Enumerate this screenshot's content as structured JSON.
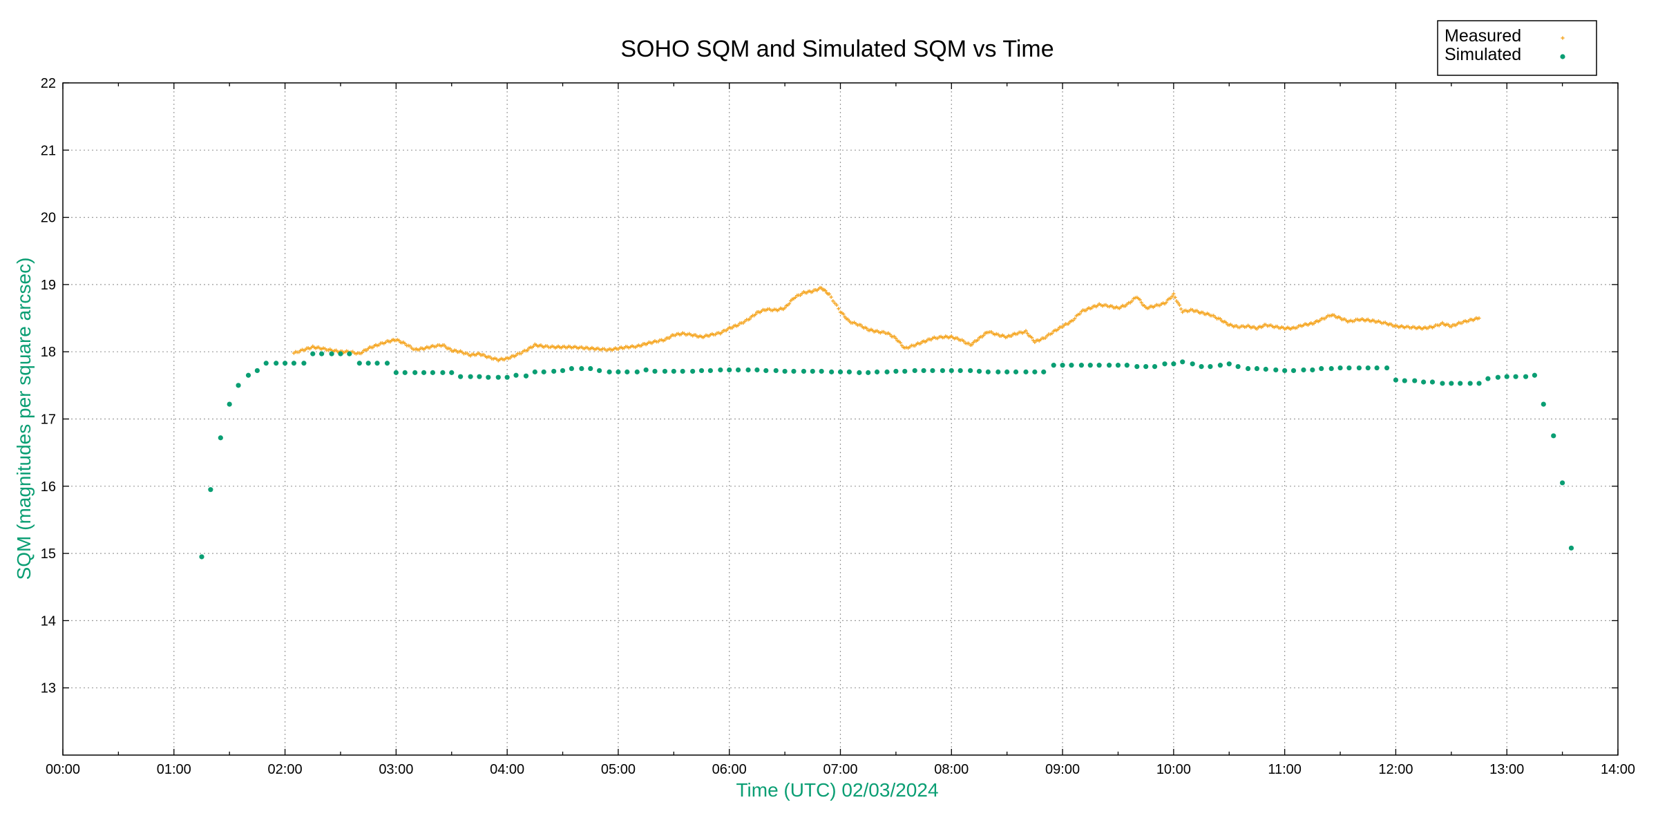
{
  "chart_data": {
    "type": "scatter",
    "title": "SOHO SQM and Simulated SQM vs Time",
    "xlabel": "Time (UTC)    02/03/2024",
    "ylabel": "SQM (magnitudes per square arcsec)",
    "x_unit": "hours UTC",
    "xlim": [
      0,
      14
    ],
    "ylim": [
      12,
      22
    ],
    "x_ticks": [
      "00:00",
      "01:00",
      "02:00",
      "03:00",
      "04:00",
      "05:00",
      "06:00",
      "07:00",
      "08:00",
      "09:00",
      "10:00",
      "11:00",
      "12:00",
      "13:00",
      "14:00"
    ],
    "y_ticks": [
      "13",
      "14",
      "15",
      "16",
      "17",
      "18",
      "19",
      "20",
      "21",
      "22"
    ],
    "grid": true,
    "legend_position": "top-right",
    "series": [
      {
        "name": "Measured",
        "color": "#f5a623",
        "marker": "plus",
        "points": [
          [
            2.08,
            17.98
          ],
          [
            2.17,
            18.03
          ],
          [
            2.25,
            18.07
          ],
          [
            2.33,
            18.05
          ],
          [
            2.42,
            18.02
          ],
          [
            2.5,
            18.0
          ],
          [
            2.58,
            18.0
          ],
          [
            2.67,
            17.97
          ],
          [
            2.75,
            18.05
          ],
          [
            2.83,
            18.1
          ],
          [
            2.92,
            18.15
          ],
          [
            3.0,
            18.18
          ],
          [
            3.08,
            18.12
          ],
          [
            3.17,
            18.03
          ],
          [
            3.25,
            18.05
          ],
          [
            3.33,
            18.08
          ],
          [
            3.42,
            18.1
          ],
          [
            3.5,
            18.02
          ],
          [
            3.58,
            18.0
          ],
          [
            3.67,
            17.95
          ],
          [
            3.75,
            17.97
          ],
          [
            3.83,
            17.92
          ],
          [
            3.92,
            17.88
          ],
          [
            4.0,
            17.9
          ],
          [
            4.08,
            17.95
          ],
          [
            4.17,
            18.02
          ],
          [
            4.25,
            18.1
          ],
          [
            4.33,
            18.08
          ],
          [
            4.42,
            18.07
          ],
          [
            4.5,
            18.07
          ],
          [
            4.58,
            18.07
          ],
          [
            4.67,
            18.06
          ],
          [
            4.75,
            18.05
          ],
          [
            4.83,
            18.04
          ],
          [
            4.92,
            18.03
          ],
          [
            5.0,
            18.05
          ],
          [
            5.08,
            18.07
          ],
          [
            5.17,
            18.08
          ],
          [
            5.25,
            18.12
          ],
          [
            5.33,
            18.15
          ],
          [
            5.42,
            18.18
          ],
          [
            5.5,
            18.25
          ],
          [
            5.58,
            18.27
          ],
          [
            5.67,
            18.25
          ],
          [
            5.75,
            18.22
          ],
          [
            5.83,
            18.25
          ],
          [
            5.92,
            18.28
          ],
          [
            6.0,
            18.35
          ],
          [
            6.08,
            18.4
          ],
          [
            6.17,
            18.48
          ],
          [
            6.25,
            18.58
          ],
          [
            6.33,
            18.63
          ],
          [
            6.42,
            18.62
          ],
          [
            6.5,
            18.65
          ],
          [
            6.58,
            18.8
          ],
          [
            6.67,
            18.88
          ],
          [
            6.75,
            18.9
          ],
          [
            6.83,
            18.95
          ],
          [
            6.9,
            18.85
          ],
          [
            7.0,
            18.6
          ],
          [
            7.08,
            18.45
          ],
          [
            7.17,
            18.4
          ],
          [
            7.25,
            18.33
          ],
          [
            7.33,
            18.3
          ],
          [
            7.42,
            18.28
          ],
          [
            7.5,
            18.2
          ],
          [
            7.58,
            18.05
          ],
          [
            7.67,
            18.1
          ],
          [
            7.75,
            18.15
          ],
          [
            7.83,
            18.2
          ],
          [
            7.92,
            18.22
          ],
          [
            8.0,
            18.22
          ],
          [
            8.08,
            18.18
          ],
          [
            8.17,
            18.1
          ],
          [
            8.25,
            18.2
          ],
          [
            8.33,
            18.3
          ],
          [
            8.42,
            18.25
          ],
          [
            8.5,
            18.22
          ],
          [
            8.58,
            18.27
          ],
          [
            8.67,
            18.3
          ],
          [
            8.75,
            18.15
          ],
          [
            8.83,
            18.2
          ],
          [
            8.92,
            18.3
          ],
          [
            9.0,
            18.38
          ],
          [
            9.08,
            18.45
          ],
          [
            9.17,
            18.6
          ],
          [
            9.25,
            18.65
          ],
          [
            9.33,
            18.7
          ],
          [
            9.42,
            18.68
          ],
          [
            9.5,
            18.65
          ],
          [
            9.58,
            18.7
          ],
          [
            9.67,
            18.82
          ],
          [
            9.75,
            18.65
          ],
          [
            9.83,
            18.68
          ],
          [
            9.92,
            18.72
          ],
          [
            10.0,
            18.85
          ],
          [
            10.08,
            18.6
          ],
          [
            10.17,
            18.62
          ],
          [
            10.25,
            18.58
          ],
          [
            10.33,
            18.55
          ],
          [
            10.42,
            18.48
          ],
          [
            10.5,
            18.4
          ],
          [
            10.58,
            18.37
          ],
          [
            10.67,
            18.38
          ],
          [
            10.75,
            18.35
          ],
          [
            10.83,
            18.4
          ],
          [
            10.92,
            18.37
          ],
          [
            11.0,
            18.35
          ],
          [
            11.08,
            18.35
          ],
          [
            11.17,
            18.4
          ],
          [
            11.25,
            18.42
          ],
          [
            11.33,
            18.48
          ],
          [
            11.42,
            18.55
          ],
          [
            11.5,
            18.5
          ],
          [
            11.58,
            18.45
          ],
          [
            11.67,
            18.48
          ],
          [
            11.75,
            18.47
          ],
          [
            11.83,
            18.45
          ],
          [
            11.92,
            18.42
          ],
          [
            12.0,
            18.38
          ],
          [
            12.08,
            18.37
          ],
          [
            12.17,
            18.36
          ],
          [
            12.25,
            18.35
          ],
          [
            12.33,
            18.37
          ],
          [
            12.42,
            18.42
          ],
          [
            12.5,
            18.38
          ],
          [
            12.58,
            18.43
          ],
          [
            12.67,
            18.47
          ],
          [
            12.75,
            18.5
          ]
        ]
      },
      {
        "name": "Simulated",
        "color": "#0a9e73",
        "marker": "dot",
        "points": [
          [
            1.25,
            14.95
          ],
          [
            1.33,
            15.95
          ],
          [
            1.42,
            16.72
          ],
          [
            1.5,
            17.22
          ],
          [
            1.58,
            17.5
          ],
          [
            1.67,
            17.65
          ],
          [
            1.75,
            17.72
          ],
          [
            1.83,
            17.83
          ],
          [
            1.92,
            17.83
          ],
          [
            2.0,
            17.83
          ],
          [
            2.08,
            17.83
          ],
          [
            2.17,
            17.83
          ],
          [
            2.25,
            17.97
          ],
          [
            2.33,
            17.97
          ],
          [
            2.42,
            17.97
          ],
          [
            2.5,
            17.97
          ],
          [
            2.58,
            17.97
          ],
          [
            2.67,
            17.83
          ],
          [
            2.75,
            17.83
          ],
          [
            2.83,
            17.83
          ],
          [
            2.92,
            17.83
          ],
          [
            3.0,
            17.69
          ],
          [
            3.08,
            17.69
          ],
          [
            3.17,
            17.69
          ],
          [
            3.25,
            17.69
          ],
          [
            3.33,
            17.69
          ],
          [
            3.42,
            17.69
          ],
          [
            3.5,
            17.69
          ],
          [
            3.58,
            17.63
          ],
          [
            3.67,
            17.63
          ],
          [
            3.75,
            17.63
          ],
          [
            3.83,
            17.62
          ],
          [
            3.92,
            17.62
          ],
          [
            4.0,
            17.62
          ],
          [
            4.08,
            17.65
          ],
          [
            4.17,
            17.64
          ],
          [
            4.25,
            17.7
          ],
          [
            4.33,
            17.7
          ],
          [
            4.42,
            17.71
          ],
          [
            4.5,
            17.72
          ],
          [
            4.58,
            17.75
          ],
          [
            4.67,
            17.75
          ],
          [
            4.75,
            17.75
          ],
          [
            4.83,
            17.72
          ],
          [
            4.92,
            17.7
          ],
          [
            5.0,
            17.7
          ],
          [
            5.08,
            17.7
          ],
          [
            5.17,
            17.7
          ],
          [
            5.25,
            17.73
          ],
          [
            5.33,
            17.71
          ],
          [
            5.42,
            17.71
          ],
          [
            5.5,
            17.71
          ],
          [
            5.58,
            17.71
          ],
          [
            5.67,
            17.71
          ],
          [
            5.75,
            17.72
          ],
          [
            5.83,
            17.72
          ],
          [
            5.92,
            17.73
          ],
          [
            6.0,
            17.73
          ],
          [
            6.08,
            17.73
          ],
          [
            6.17,
            17.73
          ],
          [
            6.25,
            17.73
          ],
          [
            6.33,
            17.72
          ],
          [
            6.42,
            17.72
          ],
          [
            6.5,
            17.71
          ],
          [
            6.58,
            17.71
          ],
          [
            6.67,
            17.71
          ],
          [
            6.75,
            17.71
          ],
          [
            6.83,
            17.71
          ],
          [
            6.92,
            17.7
          ],
          [
            7.0,
            17.7
          ],
          [
            7.08,
            17.7
          ],
          [
            7.17,
            17.69
          ],
          [
            7.25,
            17.69
          ],
          [
            7.33,
            17.7
          ],
          [
            7.42,
            17.7
          ],
          [
            7.5,
            17.71
          ],
          [
            7.58,
            17.71
          ],
          [
            7.67,
            17.72
          ],
          [
            7.75,
            17.72
          ],
          [
            7.83,
            17.72
          ],
          [
            7.92,
            17.72
          ],
          [
            8.0,
            17.72
          ],
          [
            8.08,
            17.72
          ],
          [
            8.17,
            17.72
          ],
          [
            8.25,
            17.71
          ],
          [
            8.33,
            17.7
          ],
          [
            8.42,
            17.7
          ],
          [
            8.5,
            17.7
          ],
          [
            8.58,
            17.7
          ],
          [
            8.67,
            17.7
          ],
          [
            8.75,
            17.7
          ],
          [
            8.83,
            17.7
          ],
          [
            8.92,
            17.8
          ],
          [
            9.0,
            17.8
          ],
          [
            9.08,
            17.8
          ],
          [
            9.17,
            17.8
          ],
          [
            9.25,
            17.8
          ],
          [
            9.33,
            17.8
          ],
          [
            9.42,
            17.8
          ],
          [
            9.5,
            17.8
          ],
          [
            9.58,
            17.8
          ],
          [
            9.67,
            17.78
          ],
          [
            9.75,
            17.78
          ],
          [
            9.83,
            17.78
          ],
          [
            9.92,
            17.82
          ],
          [
            10.0,
            17.82
          ],
          [
            10.08,
            17.85
          ],
          [
            10.17,
            17.82
          ],
          [
            10.25,
            17.78
          ],
          [
            10.33,
            17.78
          ],
          [
            10.42,
            17.8
          ],
          [
            10.5,
            17.82
          ],
          [
            10.58,
            17.78
          ],
          [
            10.67,
            17.75
          ],
          [
            10.75,
            17.75
          ],
          [
            10.83,
            17.74
          ],
          [
            10.92,
            17.73
          ],
          [
            11.0,
            17.72
          ],
          [
            11.08,
            17.72
          ],
          [
            11.17,
            17.73
          ],
          [
            11.25,
            17.73
          ],
          [
            11.33,
            17.75
          ],
          [
            11.42,
            17.75
          ],
          [
            11.5,
            17.76
          ],
          [
            11.58,
            17.76
          ],
          [
            11.67,
            17.76
          ],
          [
            11.75,
            17.76
          ],
          [
            11.83,
            17.76
          ],
          [
            11.92,
            17.76
          ],
          [
            12.0,
            17.58
          ],
          [
            12.08,
            17.57
          ],
          [
            12.17,
            17.57
          ],
          [
            12.25,
            17.55
          ],
          [
            12.33,
            17.55
          ],
          [
            12.42,
            17.53
          ],
          [
            12.5,
            17.53
          ],
          [
            12.58,
            17.53
          ],
          [
            12.67,
            17.53
          ],
          [
            12.75,
            17.53
          ],
          [
            12.83,
            17.6
          ],
          [
            12.92,
            17.62
          ],
          [
            13.0,
            17.63
          ],
          [
            13.08,
            17.63
          ],
          [
            13.17,
            17.63
          ],
          [
            13.25,
            17.65
          ],
          [
            13.33,
            17.22
          ],
          [
            13.42,
            16.75
          ],
          [
            13.5,
            16.05
          ],
          [
            13.58,
            15.08
          ]
        ]
      }
    ]
  }
}
